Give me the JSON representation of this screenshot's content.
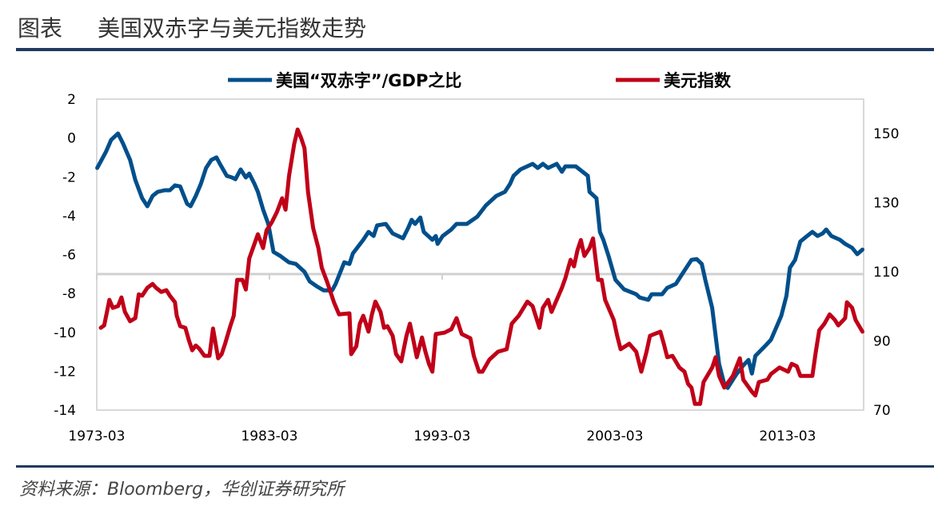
{
  "header": {
    "label": "图表",
    "title": "美国双赤字与美元指数走势"
  },
  "source": "资料来源：Bloomberg，华创证券研究所",
  "chart_data": {
    "type": "line",
    "title": "美国双赤字与美元指数走势",
    "x_ticks": [
      "1973-03",
      "1983-03",
      "1993-03",
      "2003-03",
      "2013-03"
    ],
    "x_range": [
      1973.17,
      2017.6
    ],
    "y_left": {
      "range": [
        -14,
        2
      ],
      "ticks": [
        2,
        0,
        -2,
        -4,
        -6,
        -8,
        -10,
        -12,
        -14
      ],
      "x_axis_crosses_at": -7
    },
    "y_right": {
      "range": [
        70,
        160
      ],
      "ticks": [
        150,
        130,
        110,
        90,
        70
      ]
    },
    "grid": false,
    "legend_position": "top",
    "series": [
      {
        "name": "美国“双赤字”/GDP之比",
        "axis": "left",
        "color": "#004f8b",
        "points": [
          [
            1973.2,
            -1.54
          ],
          [
            1973.7,
            -0.72
          ],
          [
            1974.0,
            -0.1
          ],
          [
            1974.4,
            0.23
          ],
          [
            1974.7,
            -0.3
          ],
          [
            1975.1,
            -1.13
          ],
          [
            1975.4,
            -2.16
          ],
          [
            1975.8,
            -3.1
          ],
          [
            1976.1,
            -3.51
          ],
          [
            1976.4,
            -2.98
          ],
          [
            1976.7,
            -2.77
          ],
          [
            1977.1,
            -2.69
          ],
          [
            1977.4,
            -2.69
          ],
          [
            1977.7,
            -2.44
          ],
          [
            1978.0,
            -2.49
          ],
          [
            1978.4,
            -3.39
          ],
          [
            1978.6,
            -3.51
          ],
          [
            1978.9,
            -2.98
          ],
          [
            1979.2,
            -2.36
          ],
          [
            1979.5,
            -1.54
          ],
          [
            1979.8,
            -1.13
          ],
          [
            1980.1,
            -1.0
          ],
          [
            1980.3,
            -1.33
          ],
          [
            1980.7,
            -1.95
          ],
          [
            1981.0,
            -2.03
          ],
          [
            1981.2,
            -2.12
          ],
          [
            1981.5,
            -1.62
          ],
          [
            1981.8,
            -2.03
          ],
          [
            1982.0,
            -1.83
          ],
          [
            1982.3,
            -2.36
          ],
          [
            1982.5,
            -2.77
          ],
          [
            1982.8,
            -3.68
          ],
          [
            1983.1,
            -4.42
          ],
          [
            1983.4,
            -5.86
          ],
          [
            1983.8,
            -6.07
          ],
          [
            1984.3,
            -6.4
          ],
          [
            1984.7,
            -6.48
          ],
          [
            1985.2,
            -6.89
          ],
          [
            1985.5,
            -7.38
          ],
          [
            1985.9,
            -7.63
          ],
          [
            1986.3,
            -7.84
          ],
          [
            1986.8,
            -7.84
          ],
          [
            1987.0,
            -7.51
          ],
          [
            1987.5,
            -6.4
          ],
          [
            1987.8,
            -6.48
          ],
          [
            1988.0,
            -5.94
          ],
          [
            1988.6,
            -5.24
          ],
          [
            1988.9,
            -4.83
          ],
          [
            1989.2,
            -5.04
          ],
          [
            1989.4,
            -4.5
          ],
          [
            1989.9,
            -4.42
          ],
          [
            1990.3,
            -4.91
          ],
          [
            1990.9,
            -5.16
          ],
          [
            1991.2,
            -4.63
          ],
          [
            1991.4,
            -4.21
          ],
          [
            1991.6,
            -4.42
          ],
          [
            1991.9,
            -4.09
          ],
          [
            1992.1,
            -4.83
          ],
          [
            1992.6,
            -5.24
          ],
          [
            1992.8,
            -5.04
          ],
          [
            1992.9,
            -5.45
          ],
          [
            1993.2,
            -5.04
          ],
          [
            1993.7,
            -4.71
          ],
          [
            1994.0,
            -4.42
          ],
          [
            1994.6,
            -4.42
          ],
          [
            1995.2,
            -4.05
          ],
          [
            1995.7,
            -3.47
          ],
          [
            1996.3,
            -2.98
          ],
          [
            1996.8,
            -2.77
          ],
          [
            1997.1,
            -2.36
          ],
          [
            1997.3,
            -1.95
          ],
          [
            1997.7,
            -1.62
          ],
          [
            1998.4,
            -1.33
          ],
          [
            1998.7,
            -1.54
          ],
          [
            1999.0,
            -1.33
          ],
          [
            1999.3,
            -1.54
          ],
          [
            1999.8,
            -1.33
          ],
          [
            2000.1,
            -1.74
          ],
          [
            2000.3,
            -1.46
          ],
          [
            2000.9,
            -1.46
          ],
          [
            2001.6,
            -1.95
          ],
          [
            2001.7,
            -2.77
          ],
          [
            2002.1,
            -3.1
          ],
          [
            2002.3,
            -4.83
          ],
          [
            2002.5,
            -5.24
          ],
          [
            2002.8,
            -6.07
          ],
          [
            2003.2,
            -7.3
          ],
          [
            2003.7,
            -7.79
          ],
          [
            2004.4,
            -8.04
          ],
          [
            2004.6,
            -8.21
          ],
          [
            2005.1,
            -8.33
          ],
          [
            2005.3,
            -8.04
          ],
          [
            2005.9,
            -8.04
          ],
          [
            2006.2,
            -7.71
          ],
          [
            2006.7,
            -7.51
          ],
          [
            2007.0,
            -7.09
          ],
          [
            2007.6,
            -6.27
          ],
          [
            2007.9,
            -6.23
          ],
          [
            2008.2,
            -6.48
          ],
          [
            2008.4,
            -7.3
          ],
          [
            2008.8,
            -8.74
          ],
          [
            2009.0,
            -10.18
          ],
          [
            2009.2,
            -11.62
          ],
          [
            2009.5,
            -12.65
          ],
          [
            2009.7,
            -12.86
          ],
          [
            2010.2,
            -12.16
          ],
          [
            2010.6,
            -11.7
          ],
          [
            2010.9,
            -11.42
          ],
          [
            2011.1,
            -12.12
          ],
          [
            2011.3,
            -11.21
          ],
          [
            2011.9,
            -10.67
          ],
          [
            2012.2,
            -10.39
          ],
          [
            2012.6,
            -9.56
          ],
          [
            2012.8,
            -9.15
          ],
          [
            2013.1,
            -8.12
          ],
          [
            2013.3,
            -6.68
          ],
          [
            2013.6,
            -6.27
          ],
          [
            2013.9,
            -5.33
          ],
          [
            2014.3,
            -5.04
          ],
          [
            2014.6,
            -4.83
          ],
          [
            2014.9,
            -5.04
          ],
          [
            2015.2,
            -4.91
          ],
          [
            2015.4,
            -4.71
          ],
          [
            2015.7,
            -5.04
          ],
          [
            2016.2,
            -5.24
          ],
          [
            2016.5,
            -5.45
          ],
          [
            2016.9,
            -5.65
          ],
          [
            2017.2,
            -5.98
          ],
          [
            2017.5,
            -5.74
          ]
        ]
      },
      {
        "name": "美元指数",
        "axis": "right",
        "color": "#c00018",
        "points": [
          [
            1973.4,
            93.8
          ],
          [
            1973.6,
            94.5
          ],
          [
            1973.9,
            101.9
          ],
          [
            1974.1,
            99.6
          ],
          [
            1974.4,
            100.1
          ],
          [
            1974.6,
            102.6
          ],
          [
            1974.8,
            98.4
          ],
          [
            1975.1,
            95.7
          ],
          [
            1975.4,
            96.6
          ],
          [
            1975.6,
            103.5
          ],
          [
            1975.8,
            103.1
          ],
          [
            1976.1,
            105.4
          ],
          [
            1976.4,
            106.5
          ],
          [
            1976.6,
            105.4
          ],
          [
            1976.9,
            104.2
          ],
          [
            1977.2,
            104.7
          ],
          [
            1977.4,
            103.1
          ],
          [
            1977.7,
            101.2
          ],
          [
            1977.8,
            97.3
          ],
          [
            1978.0,
            94.3
          ],
          [
            1978.3,
            93.8
          ],
          [
            1978.5,
            90.3
          ],
          [
            1978.7,
            87.3
          ],
          [
            1978.9,
            88.7
          ],
          [
            1979.1,
            87.8
          ],
          [
            1979.4,
            85.7
          ],
          [
            1979.7,
            85.7
          ],
          [
            1979.9,
            93.6
          ],
          [
            1980.2,
            85.0
          ],
          [
            1980.4,
            86.2
          ],
          [
            1980.6,
            89.2
          ],
          [
            1980.9,
            94.3
          ],
          [
            1981.1,
            97.3
          ],
          [
            1981.3,
            107.7
          ],
          [
            1981.6,
            107.7
          ],
          [
            1981.8,
            104.9
          ],
          [
            1982.0,
            113.9
          ],
          [
            1982.3,
            118.1
          ],
          [
            1982.5,
            120.9
          ],
          [
            1982.8,
            116.9
          ],
          [
            1983.0,
            122.0
          ],
          [
            1983.3,
            124.3
          ],
          [
            1983.6,
            127.3
          ],
          [
            1983.9,
            131.3
          ],
          [
            1984.1,
            128.0
          ],
          [
            1984.3,
            137.7
          ],
          [
            1984.6,
            147.0
          ],
          [
            1984.8,
            151.2
          ],
          [
            1985.0,
            148.8
          ],
          [
            1985.2,
            145.8
          ],
          [
            1985.4,
            133.1
          ],
          [
            1985.7,
            122.7
          ],
          [
            1986.0,
            116.9
          ],
          [
            1986.2,
            111.2
          ],
          [
            1986.5,
            107.2
          ],
          [
            1986.9,
            101.2
          ],
          [
            1987.2,
            97.7
          ],
          [
            1987.8,
            98.0
          ],
          [
            1987.9,
            86.2
          ],
          [
            1988.2,
            88.5
          ],
          [
            1988.4,
            95.0
          ],
          [
            1988.6,
            97.3
          ],
          [
            1988.9,
            92.7
          ],
          [
            1989.1,
            97.7
          ],
          [
            1989.3,
            101.4
          ],
          [
            1989.6,
            98.4
          ],
          [
            1989.8,
            93.8
          ],
          [
            1990.0,
            94.3
          ],
          [
            1990.3,
            91.5
          ],
          [
            1990.5,
            86.2
          ],
          [
            1990.8,
            84.1
          ],
          [
            1991.1,
            91.5
          ],
          [
            1991.3,
            95.0
          ],
          [
            1991.5,
            90.3
          ],
          [
            1991.7,
            85.3
          ],
          [
            1992.0,
            91.0
          ],
          [
            1992.2,
            86.9
          ],
          [
            1992.4,
            83.4
          ],
          [
            1992.6,
            81.1
          ],
          [
            1992.8,
            92.0
          ],
          [
            1993.3,
            92.4
          ],
          [
            1993.7,
            93.4
          ],
          [
            1994.0,
            96.6
          ],
          [
            1994.3,
            92.0
          ],
          [
            1994.8,
            90.8
          ],
          [
            1995.0,
            85.7
          ],
          [
            1995.3,
            81.1
          ],
          [
            1995.5,
            81.1
          ],
          [
            1995.9,
            84.6
          ],
          [
            1996.4,
            86.9
          ],
          [
            1996.9,
            87.6
          ],
          [
            1997.2,
            95.0
          ],
          [
            1997.6,
            97.3
          ],
          [
            1998.1,
            101.4
          ],
          [
            1998.4,
            100.1
          ],
          [
            1998.8,
            93.8
          ],
          [
            1999.0,
            99.6
          ],
          [
            1999.3,
            101.9
          ],
          [
            1999.5,
            98.4
          ],
          [
            2000.1,
            105.4
          ],
          [
            2000.3,
            108.2
          ],
          [
            2000.6,
            113.5
          ],
          [
            2000.8,
            111.6
          ],
          [
            2001.0,
            116.2
          ],
          [
            2001.2,
            119.2
          ],
          [
            2001.4,
            114.6
          ],
          [
            2001.7,
            116.9
          ],
          [
            2001.9,
            119.7
          ],
          [
            2002.2,
            107.7
          ],
          [
            2002.4,
            107.7
          ],
          [
            2002.6,
            101.9
          ],
          [
            2003.1,
            96.1
          ],
          [
            2003.3,
            91.5
          ],
          [
            2003.5,
            87.6
          ],
          [
            2004.0,
            89.2
          ],
          [
            2004.4,
            86.9
          ],
          [
            2004.7,
            81.1
          ],
          [
            2005.0,
            86.9
          ],
          [
            2005.2,
            91.5
          ],
          [
            2005.8,
            92.7
          ],
          [
            2006.0,
            89.2
          ],
          [
            2006.2,
            85.3
          ],
          [
            2006.5,
            85.7
          ],
          [
            2006.9,
            82.3
          ],
          [
            2007.2,
            81.1
          ],
          [
            2007.4,
            77.6
          ],
          [
            2007.6,
            76.5
          ],
          [
            2007.8,
            71.8
          ],
          [
            2008.1,
            71.8
          ],
          [
            2008.3,
            78.1
          ],
          [
            2008.8,
            82.3
          ],
          [
            2009.0,
            85.3
          ],
          [
            2009.2,
            79.9
          ],
          [
            2009.5,
            76.5
          ],
          [
            2010.0,
            79.9
          ],
          [
            2010.4,
            85.0
          ],
          [
            2010.6,
            78.8
          ],
          [
            2011.1,
            75.3
          ],
          [
            2011.3,
            74.2
          ],
          [
            2011.5,
            78.1
          ],
          [
            2012.0,
            78.8
          ],
          [
            2012.2,
            80.4
          ],
          [
            2012.7,
            82.3
          ],
          [
            2013.2,
            81.1
          ],
          [
            2013.4,
            83.4
          ],
          [
            2013.7,
            82.7
          ],
          [
            2013.9,
            79.9
          ],
          [
            2014.6,
            79.9
          ],
          [
            2014.8,
            86.9
          ],
          [
            2015.0,
            93.1
          ],
          [
            2015.3,
            95.0
          ],
          [
            2015.6,
            97.7
          ],
          [
            2015.9,
            96.1
          ],
          [
            2016.1,
            94.5
          ],
          [
            2016.5,
            96.6
          ],
          [
            2016.6,
            101.2
          ],
          [
            2016.9,
            99.6
          ],
          [
            2017.1,
            96.1
          ],
          [
            2017.5,
            92.7
          ]
        ]
      }
    ]
  }
}
